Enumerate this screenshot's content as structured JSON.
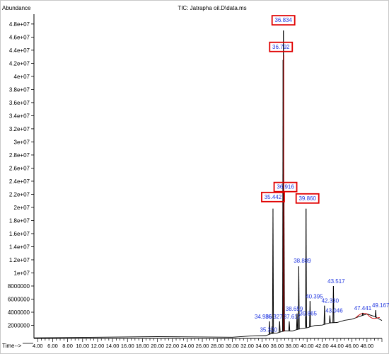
{
  "chart_data": {
    "type": "line",
    "title": "TIC: Jatrapha oil.D\\data.ms",
    "ylabel": "Abundance",
    "xlabel": "Time-->",
    "xlim": [
      3.5,
      50.0
    ],
    "ylim": [
      0,
      49500000
    ],
    "y_ticks": [
      "2000000",
      "4000000",
      "6000000",
      "8000000",
      "1e+07",
      "1.2e+07",
      "1.4e+07",
      "1.6e+07",
      "1.8e+07",
      "2e+07",
      "2.2e+07",
      "2.4e+07",
      "2.6e+07",
      "2.8e+07",
      "3e+07",
      "3.2e+07",
      "3.4e+07",
      "3.6e+07",
      "3.8e+07",
      "4e+07",
      "4.2e+07",
      "4.4e+07",
      "4.6e+07",
      "4.8e+07"
    ],
    "y_tick_values": [
      2000000,
      4000000,
      6000000,
      8000000,
      10000000,
      12000000,
      14000000,
      16000000,
      18000000,
      20000000,
      22000000,
      24000000,
      26000000,
      28000000,
      30000000,
      32000000,
      34000000,
      36000000,
      38000000,
      40000000,
      42000000,
      44000000,
      46000000,
      48000000
    ],
    "x_ticks": [
      "4.00",
      "6.00",
      "8.00",
      "10.00",
      "12.00",
      "14.00",
      "16.00",
      "18.00",
      "20.00",
      "22.00",
      "24.00",
      "26.00",
      "28.00",
      "30.00",
      "32.00",
      "34.00",
      "36.00",
      "38.00",
      "40.00",
      "42.00",
      "44.00",
      "46.00",
      "48.00"
    ],
    "x_tick_values": [
      4,
      6,
      8,
      10,
      12,
      14,
      16,
      18,
      20,
      22,
      24,
      26,
      28,
      30,
      32,
      34,
      36,
      38,
      40,
      42,
      44,
      46,
      48
    ],
    "baseline": [
      [
        3.5,
        150000
      ],
      [
        20,
        200000
      ],
      [
        30,
        250000
      ],
      [
        33,
        350000
      ],
      [
        34.5,
        500000
      ],
      [
        35.3,
        700000
      ],
      [
        36,
        900000
      ],
      [
        37,
        1100000
      ],
      [
        38,
        1200000
      ],
      [
        39,
        1400000
      ],
      [
        40,
        1700000
      ],
      [
        41,
        1900000
      ],
      [
        42,
        2100000
      ],
      [
        43,
        2300000
      ],
      [
        44,
        2500000
      ],
      [
        45,
        2700000
      ],
      [
        46,
        3000000
      ],
      [
        47,
        3300000
      ],
      [
        48,
        3800000
      ],
      [
        49,
        3300000
      ],
      [
        50,
        2800000
      ]
    ],
    "peaks": [
      {
        "rt": "34.986",
        "x": 34.986,
        "y": 2600000,
        "boxed": false
      },
      {
        "rt": "35.320",
        "x": 35.32,
        "y": 1800000,
        "boxed": false
      },
      {
        "rt": "35.442",
        "x": 35.442,
        "y": 19800000,
        "boxed": true
      },
      {
        "rt": "36.327",
        "x": 36.327,
        "y": 2600000,
        "boxed": false
      },
      {
        "rt": "36.792",
        "x": 36.792,
        "y": 42500000,
        "boxed": true
      },
      {
        "rt": "36.834",
        "x": 36.834,
        "y": 47000000,
        "boxed": true
      },
      {
        "rt": "36.916",
        "x": 36.916,
        "y": 21000000,
        "boxed": true
      },
      {
        "rt": "37.617",
        "x": 37.617,
        "y": 2600000,
        "boxed": false
      },
      {
        "rt": "38.659",
        "x": 38.659,
        "y": 3800000,
        "boxed": false
      },
      {
        "rt": "38.889",
        "x": 38.889,
        "y": 11000000,
        "boxed": false
      },
      {
        "rt": "39.865",
        "x": 39.865,
        "y": 3300000,
        "boxed": false
      },
      {
        "rt": "39.860",
        "x": 39.86,
        "y": 19800000,
        "boxed": true
      },
      {
        "rt": "40.395",
        "x": 40.395,
        "y": 5700000,
        "boxed": false
      },
      {
        "rt": "42.330",
        "x": 42.33,
        "y": 5000000,
        "boxed": false
      },
      {
        "rt": "43.046",
        "x": 43.046,
        "y": 3500000,
        "boxed": false
      },
      {
        "rt": "43.517",
        "x": 43.517,
        "y": 8000000,
        "boxed": false
      },
      {
        "rt": "47.441",
        "x": 47.441,
        "y": 3900000,
        "boxed": false
      },
      {
        "rt": "49.167",
        "x": 49.167,
        "y": 4300000,
        "boxed": false
      }
    ],
    "grid": false,
    "colors": {
      "trace": "#000000",
      "peak_highlight": "#cc0000",
      "label": "#1f35e0",
      "box": "#e00000"
    }
  }
}
